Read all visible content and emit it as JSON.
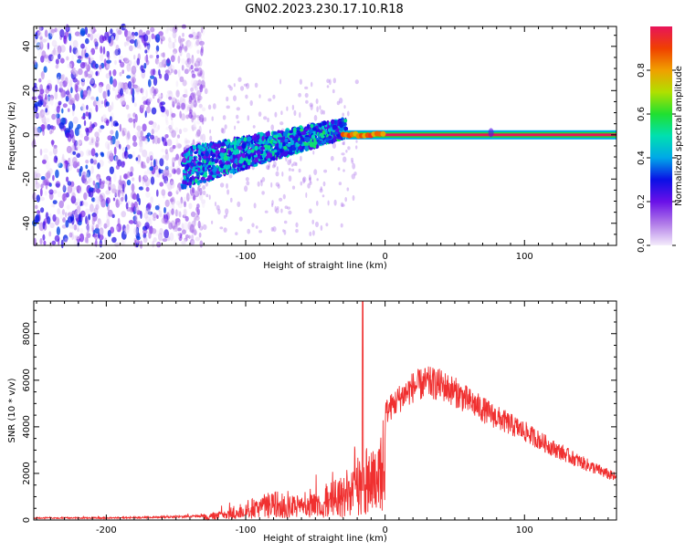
{
  "title": "GN02.2023.230.17.10.R18",
  "chart_data": [
    {
      "type": "heatmap",
      "xlabel": "Height of straight line (km)",
      "ylabel": "Frequency (Hz)",
      "xlim": [
        -252,
        166
      ],
      "ylim": [
        -50,
        49
      ],
      "x_ticks": [
        -200,
        -100,
        0,
        100
      ],
      "y_ticks": [
        -40,
        -20,
        0,
        20,
        40
      ],
      "colorbar": {
        "label": "Normalized spectral amplitude",
        "range": [
          0.0,
          1.0
        ],
        "ticks": [
          "0.0",
          "0.2",
          "0.4",
          "0.6",
          "0.8"
        ],
        "tick_values": [
          0.0,
          0.2,
          0.4,
          0.6,
          0.8
        ],
        "colors": [
          "#f4ecfb",
          "#b07ae8",
          "#6a10e8",
          "#0a10e6",
          "#00a8e8",
          "#00e0b0",
          "#20e030",
          "#b0e000",
          "#f0a000",
          "#f04000",
          "#e8145a"
        ]
      },
      "features": {
        "noise_region_x": [
          -252,
          -140
        ],
        "scatter_band": {
          "x": [
            -145,
            -28
          ],
          "freq_start": -15,
          "freq_end": 3
        },
        "carrier_line": {
          "x": [
            -28,
            166
          ],
          "freq": 0,
          "amplitude": 0.95
        }
      }
    },
    {
      "type": "line",
      "xlabel": "Height of straight line (km)",
      "ylabel": "SNR (10 * v/v)",
      "xlim": [
        -252,
        166
      ],
      "ylim": [
        0,
        9400
      ],
      "x_ticks": [
        -200,
        -100,
        0,
        100
      ],
      "y_ticks": [
        0,
        2000,
        4000,
        6000,
        8000
      ],
      "series_color": "#f03030",
      "envelope": {
        "x": [
          -252,
          -200,
          -150,
          -130,
          -120,
          -110,
          -100,
          -90,
          -80,
          -70,
          -60,
          -50,
          -40,
          -30,
          -25,
          -20,
          -15,
          -10,
          -5,
          0,
          10,
          20,
          30,
          40,
          50,
          60,
          80,
          100,
          120,
          140,
          166
        ],
        "y": [
          120,
          120,
          180,
          250,
          400,
          650,
          900,
          1100,
          1400,
          1100,
          1200,
          1500,
          1800,
          2000,
          2600,
          3200,
          2600,
          4200,
          4400,
          4600,
          5200,
          5700,
          5900,
          5800,
          5500,
          5100,
          4400,
          3800,
          3100,
          2500,
          1800
        ]
      },
      "spike": {
        "x": -16,
        "y": 9400
      }
    }
  ]
}
